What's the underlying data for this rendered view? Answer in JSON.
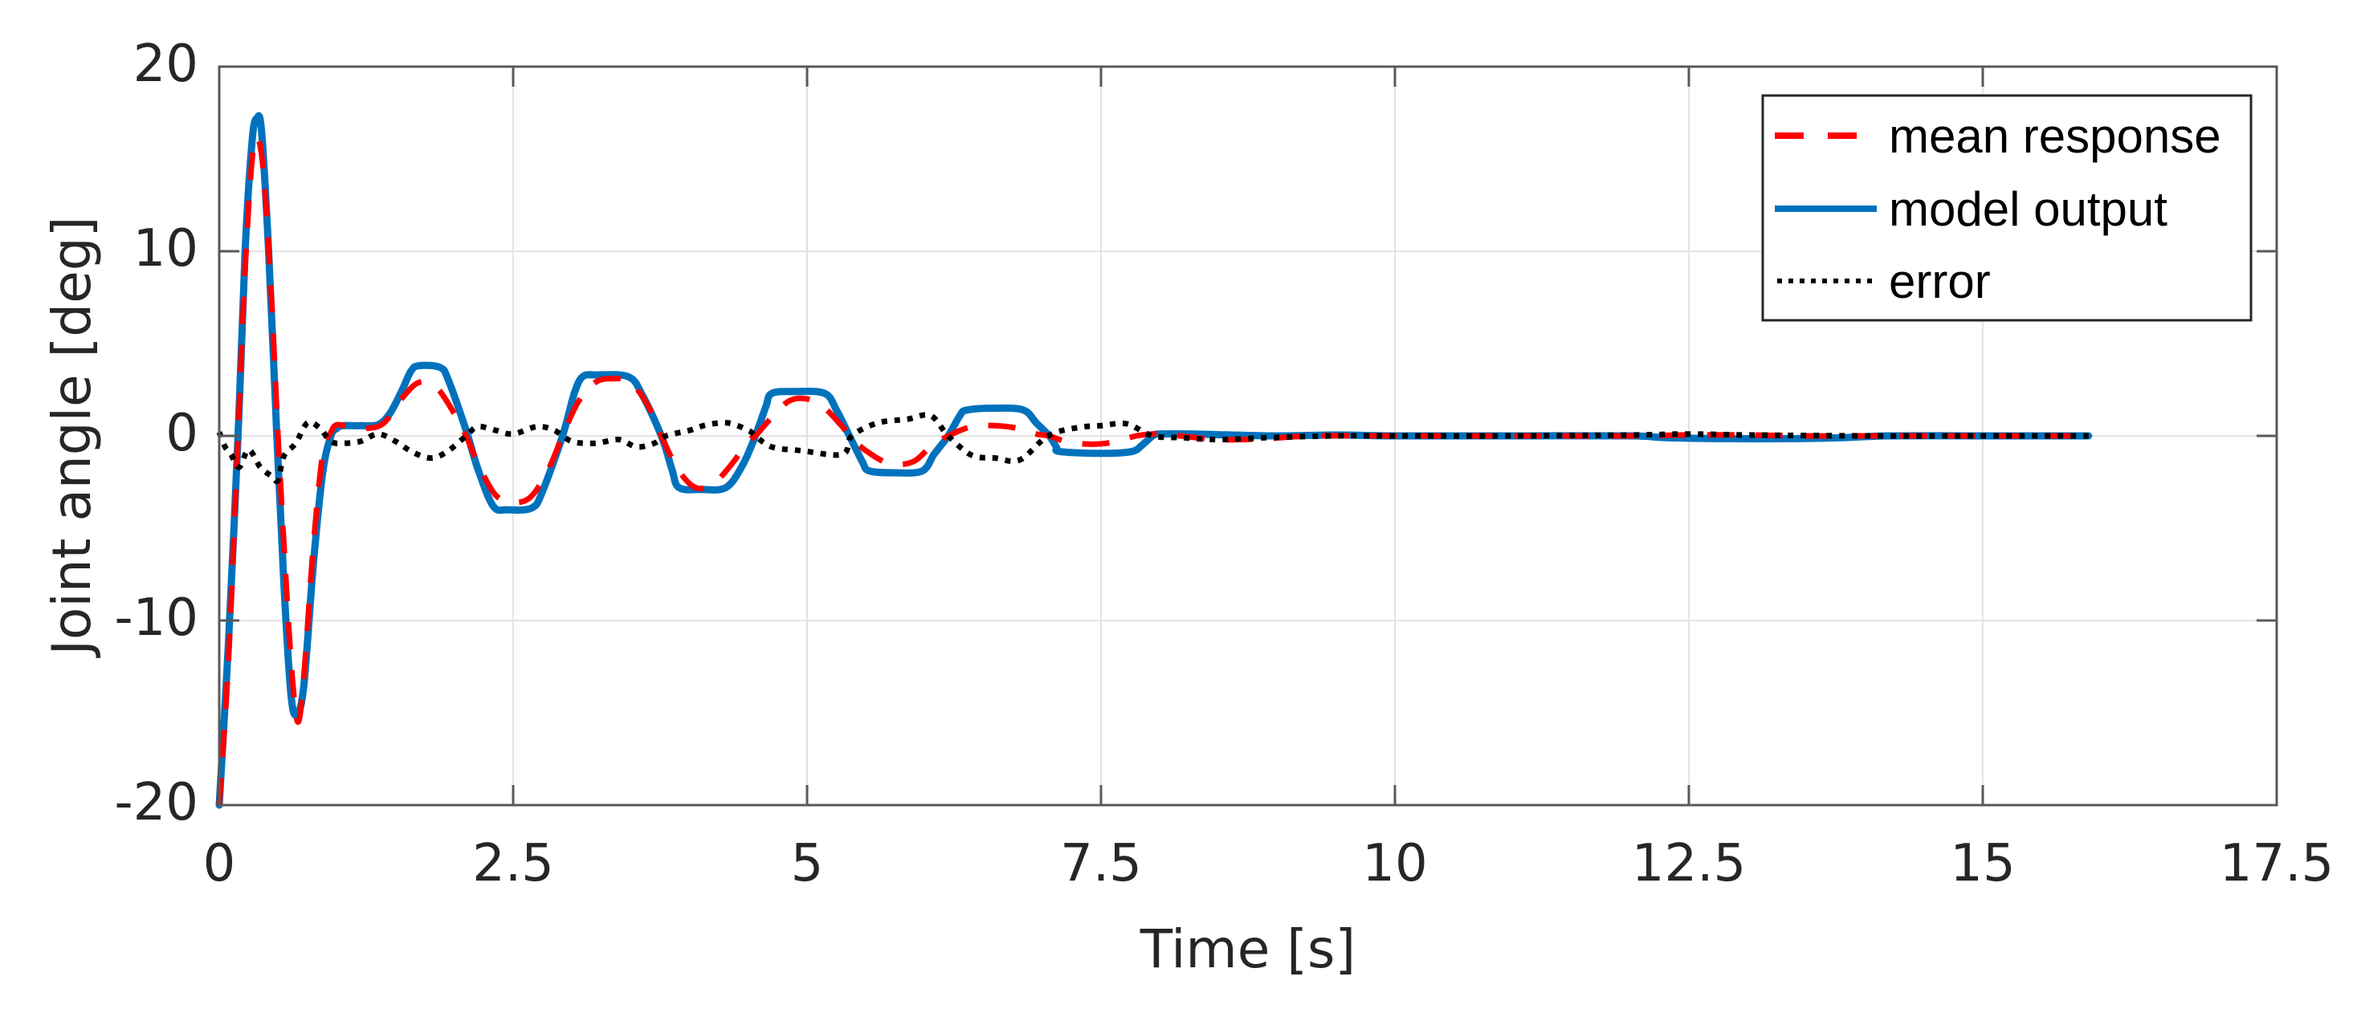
{
  "chart_data": {
    "type": "line",
    "title": "",
    "xlabel": "Time [s]",
    "ylabel": "Joint angle [deg]",
    "xlim": [
      0,
      17.5
    ],
    "ylim": [
      -20,
      20
    ],
    "xticks": [
      0,
      2.5,
      5,
      7.5,
      10,
      12.5,
      15,
      17.5
    ],
    "xtick_labels": [
      "0",
      "2.5",
      "5",
      "7.5",
      "10",
      "12.5",
      "15",
      "17.5"
    ],
    "yticks": [
      -20,
      -10,
      0,
      10,
      20
    ],
    "ytick_labels": [
      "-20",
      "-10",
      "0",
      "10",
      "20"
    ],
    "grid": true,
    "legend_position": "upper right",
    "series": [
      {
        "name": "mean response",
        "color": "#FF0000",
        "style": "dashed",
        "x": [
          0,
          0.08,
          0.16,
          0.22,
          0.28,
          0.33,
          0.38,
          0.44,
          0.5,
          0.56,
          0.62,
          0.67,
          0.72,
          0.8,
          0.88,
          0.95,
          1.0,
          1.1,
          1.25,
          1.4,
          1.55,
          1.7,
          1.85,
          2.0,
          2.1,
          2.2,
          2.35,
          2.5,
          2.65,
          2.8,
          2.92,
          3.05,
          3.2,
          3.35,
          3.5,
          3.65,
          3.76,
          3.9,
          4.05,
          4.2,
          4.35,
          4.5,
          4.56,
          4.7,
          4.85,
          5.0,
          5.15,
          5.3,
          5.36,
          5.5,
          5.7,
          5.9,
          6.05,
          6.2,
          6.4,
          6.6,
          6.8,
          6.95,
          7.06,
          7.2,
          7.4,
          7.6,
          7.8,
          7.94,
          8.1,
          8.5,
          8.9,
          9.3,
          10,
          11,
          12,
          12.5,
          13,
          13.5,
          14,
          15,
          15.9
        ],
        "y": [
          -20,
          -12,
          0,
          9,
          15,
          16.1,
          14,
          8,
          0,
          -7,
          -13,
          -15.5,
          -13,
          -6,
          -1,
          0.2,
          0.6,
          0.5,
          0.4,
          0.7,
          2.0,
          2.9,
          2.6,
          1.2,
          0,
          -1.5,
          -3.2,
          -3.6,
          -3.3,
          -1.8,
          0,
          1.8,
          2.9,
          3.1,
          2.9,
          1.6,
          0,
          -1.8,
          -2.8,
          -2.6,
          -1.6,
          -0.3,
          0,
          1.0,
          1.9,
          2.0,
          1.5,
          0.5,
          0,
          -0.8,
          -1.5,
          -1.4,
          -0.6,
          0,
          0.5,
          0.55,
          0.4,
          0.1,
          0,
          -0.3,
          -0.45,
          -0.35,
          0.0,
          0.1,
          0.05,
          -0.2,
          -0.15,
          0,
          0,
          0,
          0,
          0.05,
          0.05,
          0,
          0,
          0,
          0
        ]
      },
      {
        "name": "model output",
        "color": "#0072BD",
        "style": "solid",
        "x": [
          0,
          0.08,
          0.16,
          0.22,
          0.28,
          0.32,
          0.36,
          0.42,
          0.49,
          0.55,
          0.61,
          0.66,
          0.72,
          0.8,
          0.88,
          0.95,
          1.0,
          1.05,
          1.2,
          1.35,
          1.45,
          1.55,
          1.63,
          1.7,
          1.88,
          1.95,
          2.1,
          2.2,
          2.33,
          2.45,
          2.66,
          2.75,
          2.92,
          3.02,
          3.09,
          3.2,
          3.48,
          3.6,
          3.76,
          3.85,
          3.91,
          4.1,
          4.31,
          4.45,
          4.56,
          4.65,
          4.7,
          4.9,
          5.15,
          5.25,
          5.36,
          5.47,
          5.53,
          5.75,
          5.98,
          6.08,
          6.2,
          6.3,
          6.36,
          6.6,
          6.84,
          6.95,
          7.06,
          7.12,
          7.15,
          7.5,
          7.76,
          7.85,
          7.94,
          8.0,
          8.3,
          8.6,
          9.0,
          9.5,
          10,
          11,
          12,
          12.3,
          12.8,
          13.3,
          13.8,
          14.2,
          15,
          15.9
        ],
        "y": [
          -20,
          -11,
          0,
          10,
          16,
          17.2,
          16.5,
          10,
          0,
          -8,
          -14,
          -15.1,
          -13.5,
          -7,
          -2,
          0,
          0.4,
          0.55,
          0.55,
          0.6,
          1.2,
          2.4,
          3.5,
          3.8,
          3.7,
          3.0,
          0.3,
          -1.8,
          -3.8,
          -4.0,
          -3.9,
          -3.0,
          0,
          2.3,
          3.2,
          3.3,
          3.2,
          2.2,
          0,
          -1.8,
          -2.8,
          -2.9,
          -2.8,
          -1.6,
          0,
          1.6,
          2.3,
          2.4,
          2.3,
          1.4,
          0,
          -1.4,
          -1.9,
          -2.0,
          -1.9,
          -1.0,
          0,
          1.1,
          1.4,
          1.5,
          1.4,
          0.7,
          0,
          -0.6,
          -0.85,
          -0.95,
          -0.85,
          -0.5,
          0,
          0.1,
          0.1,
          0.05,
          0,
          0.05,
          0,
          0,
          0,
          -0.1,
          -0.15,
          -0.15,
          -0.1,
          0,
          0,
          0
        ]
      },
      {
        "name": "error",
        "color": "#000000",
        "style": "dotted",
        "x": [
          0,
          0.05,
          0.1,
          0.17,
          0.25,
          0.35,
          0.45,
          0.5,
          0.55,
          0.65,
          0.75,
          0.85,
          0.95,
          1.05,
          1.2,
          1.35,
          1.5,
          1.65,
          1.81,
          1.95,
          2.1,
          2.2,
          2.35,
          2.5,
          2.7,
          2.85,
          3.0,
          3.2,
          3.4,
          3.55,
          3.7,
          3.8,
          4.0,
          4.15,
          4.33,
          4.5,
          4.56,
          4.7,
          4.95,
          5.3,
          5.38,
          5.6,
          5.85,
          6.05,
          6.2,
          6.4,
          6.6,
          6.81,
          7.05,
          7.3,
          7.5,
          7.72,
          7.94,
          8.2,
          8.5,
          8.9,
          9.5,
          10,
          11,
          12,
          12.5,
          13,
          14,
          15,
          15.9
        ],
        "y": [
          0.2,
          -0.6,
          -1.0,
          -1.7,
          -0.75,
          -1.7,
          -2.2,
          -2.4,
          -1.1,
          -0.4,
          0.7,
          0.45,
          -0.3,
          -0.4,
          -0.3,
          0.1,
          -0.3,
          -0.9,
          -1.2,
          -0.8,
          0,
          0.5,
          0.3,
          0.1,
          0.5,
          0.3,
          -0.3,
          -0.4,
          -0.2,
          -0.6,
          -0.4,
          0,
          0.3,
          0.6,
          0.7,
          0.3,
          0,
          -0.6,
          -0.8,
          -1.0,
          0,
          0.7,
          0.9,
          1.1,
          0,
          -1.05,
          -1.2,
          -1.3,
          0,
          0.45,
          0.55,
          0.65,
          0,
          -0.1,
          -0.2,
          -0.1,
          0,
          0,
          0,
          0.05,
          0.1,
          0.05,
          0,
          0,
          0
        ]
      }
    ]
  },
  "legend": {
    "items": [
      {
        "label": "mean response",
        "color": "#FF0000",
        "style": "dashed"
      },
      {
        "label": "model output",
        "color": "#0072BD",
        "style": "solid"
      },
      {
        "label": "error",
        "color": "#000000",
        "style": "dotted"
      }
    ]
  },
  "colors": {
    "axis": "#595959",
    "grid": "#E3E3E3",
    "text": "#262626"
  }
}
